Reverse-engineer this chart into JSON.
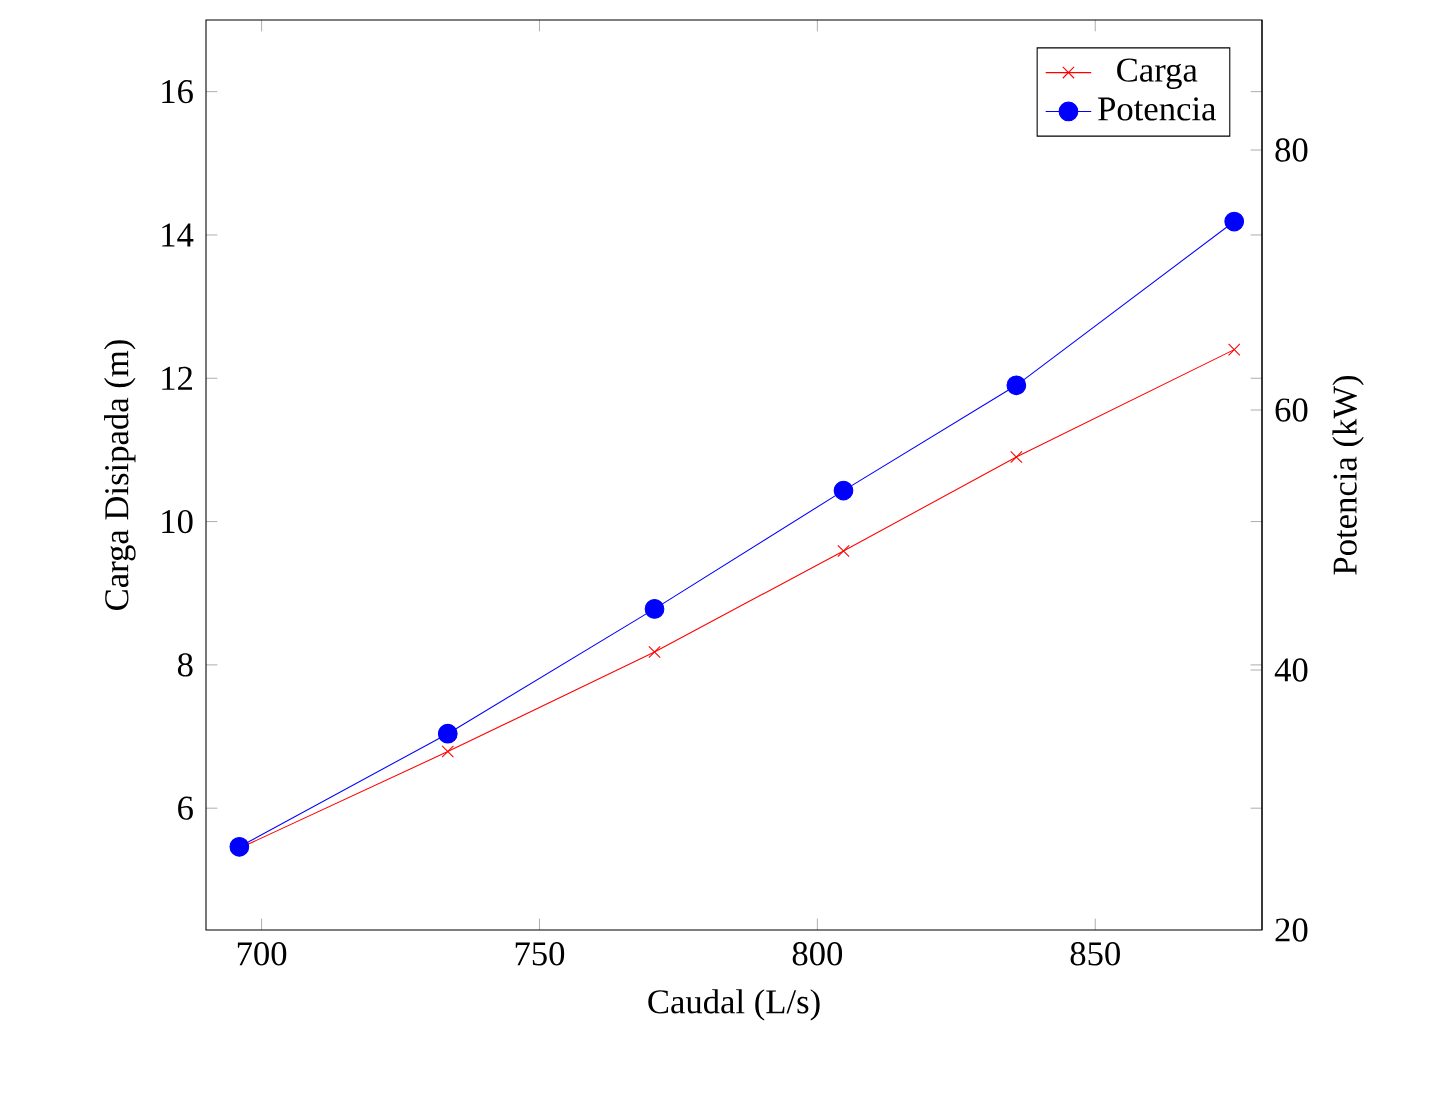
{
  "chart_data": {
    "type": "line",
    "xlabel": "Caudal (L/s)",
    "ylabel": "Carga Disipada (m)",
    "y2label": "Potencia (kW)",
    "xlim": [
      690,
      880
    ],
    "xticks": [
      700,
      750,
      800,
      850
    ],
    "ylim": [
      4.3,
      17
    ],
    "yticks": [
      6,
      8,
      10,
      12,
      14,
      16
    ],
    "y2lim": [
      20,
      90
    ],
    "y2ticks": [
      20,
      40,
      60,
      80
    ],
    "x": [
      696,
      733.5,
      770.7,
      804.7,
      835.8,
      875
    ],
    "legend": "top right",
    "grid": false,
    "series": [
      {
        "name": "Carga",
        "color": "#ff0000",
        "marker": "cross",
        "values": [
          5.44,
          6.79,
          8.18,
          9.59,
          10.9,
          12.4
        ]
      },
      {
        "name": "Potencia",
        "color": "#0000ff",
        "marker": "circle",
        "axis": "y2",
        "values": [
          26.4,
          35.1,
          44.7,
          53.8,
          61.9,
          74.5
        ]
      }
    ]
  }
}
